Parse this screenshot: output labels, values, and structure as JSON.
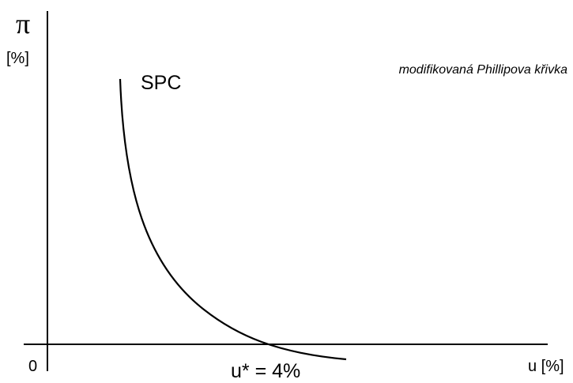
{
  "axes": {
    "y_symbol": "π",
    "y_unit": "[%]",
    "origin": "0",
    "x_label": "u [%]"
  },
  "title": "modifikovaná Phillipova křivka",
  "curve_label": "SPC",
  "natural_rate_label": "u* = 4%"
}
